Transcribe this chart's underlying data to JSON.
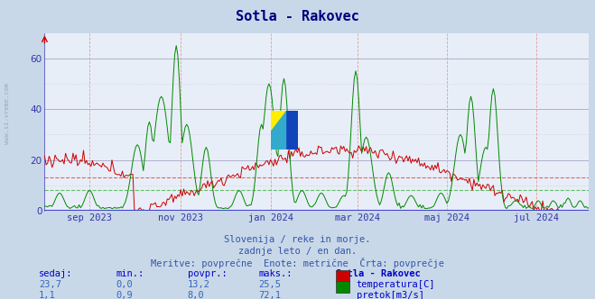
{
  "title": "Sotla - Rakovec",
  "title_color": "#000080",
  "title_fontsize": 11,
  "bg_color": "#c8d8e8",
  "plot_bg_color": "#e8eef8",
  "ylim": [
    0,
    70
  ],
  "yticks": [
    0,
    20,
    40,
    60
  ],
  "temp_color": "#cc0000",
  "flow_color": "#008800",
  "avg_temp_value": 13.2,
  "avg_flow_value": 8.0,
  "avg_temp_color": "#dd6666",
  "avg_flow_color": "#66bb66",
  "vgrid_color": "#ee9999",
  "hgrid_major_color": "#9999bb",
  "hgrid_minor_color": "#bbbbdd",
  "x_tick_labels": [
    "sep 2023",
    "nov 2023",
    "jan 2024",
    "mar 2024",
    "maj 2024",
    "jul 2024"
  ],
  "x_tick_fracs": [
    0.085,
    0.25,
    0.415,
    0.575,
    0.74,
    0.905
  ],
  "subtitle1": "Slovenija / reke in morje.",
  "subtitle2": "zadnje leto / en dan.",
  "subtitle3": "Meritve: povprečne  Enote: metrične  Črta: povprečje",
  "subtitle_color": "#3355aa",
  "footer_label_color": "#0000cc",
  "footer_value_color": "#3366bb",
  "left_watermark": "www.si-vreme.com",
  "axis_color": "#3333aa",
  "bottom_line_color": "#4444cc",
  "sedaj_row": [
    "23,7",
    "0,0",
    "13,2",
    "25,5"
  ],
  "pretok_row": [
    "1,1",
    "0,9",
    "8,0",
    "72,1"
  ],
  "footer_headers": [
    "sedaj:",
    "min.:",
    "povpr.:",
    "maks.:",
    "Sotla - Rakovec"
  ],
  "legend_labels": [
    "temperatura[C]",
    "pretok[m3/s]"
  ],
  "legend_colors": [
    "#cc0000",
    "#008800"
  ]
}
